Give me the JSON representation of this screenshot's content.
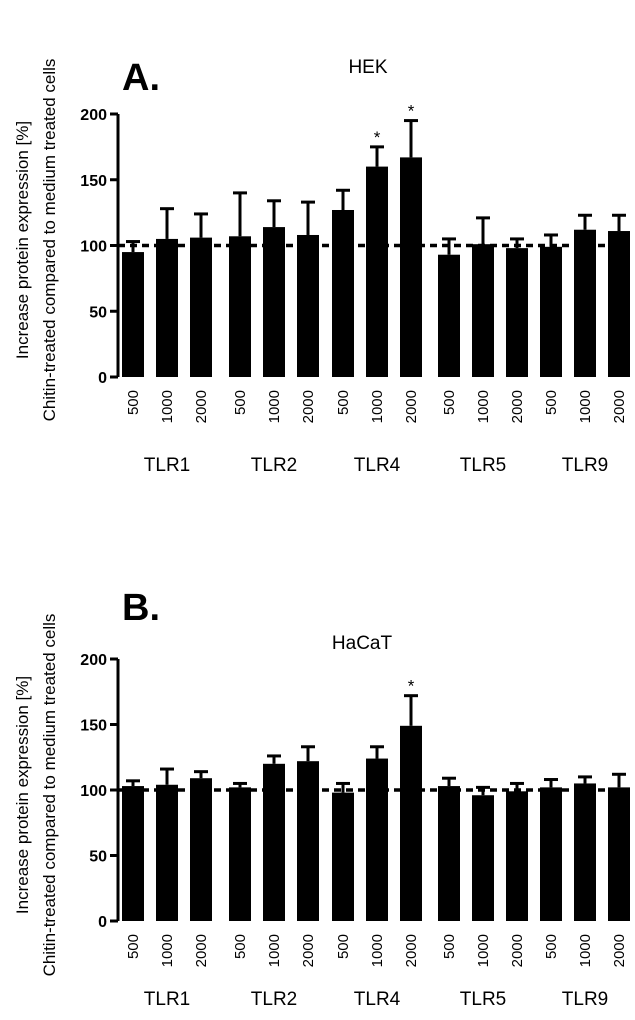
{
  "chart_data": [
    {
      "type": "bar",
      "panel_letter": "A.",
      "title": "HEK",
      "ylabel_line1": "Increase protein expression [%]",
      "ylabel_line2": "Chitin-treated compared to medium treated cells",
      "ylim": [
        0,
        200
      ],
      "yticks": [
        "0",
        "50",
        "100",
        "150",
        "200"
      ],
      "reference_line": 100,
      "concentrations": [
        "500",
        "1000",
        "2000"
      ],
      "groups": [
        {
          "name": "TLR1",
          "values": [
            95,
            105,
            106
          ],
          "errors": [
            8,
            23,
            18
          ],
          "significant": [
            false,
            false,
            false
          ]
        },
        {
          "name": "TLR2",
          "values": [
            107,
            114,
            108
          ],
          "errors": [
            33,
            20,
            25
          ],
          "significant": [
            false,
            false,
            false
          ]
        },
        {
          "name": "TLR4",
          "values": [
            127,
            160,
            167
          ],
          "errors": [
            15,
            15,
            28
          ],
          "significant": [
            false,
            true,
            true
          ]
        },
        {
          "name": "TLR5",
          "values": [
            93,
            101,
            98
          ],
          "errors": [
            12,
            20,
            7
          ],
          "significant": [
            false,
            false,
            false
          ]
        },
        {
          "name": "TLR9",
          "values": [
            99,
            112,
            111
          ],
          "errors": [
            9,
            11,
            12
          ],
          "significant": [
            false,
            false,
            false
          ]
        }
      ],
      "significance_marker": "*"
    },
    {
      "type": "bar",
      "panel_letter": "B.",
      "title": "HaCaT",
      "ylabel_line1": "Increase protein expression [%]",
      "ylabel_line2": "Chitin-treated compared to medium treated cells",
      "ylim": [
        0,
        200
      ],
      "yticks": [
        "0",
        "50",
        "100",
        "150",
        "200"
      ],
      "reference_line": 100,
      "concentrations": [
        "500",
        "1000",
        "2000"
      ],
      "groups": [
        {
          "name": "TLR1",
          "values": [
            103,
            104,
            109
          ],
          "errors": [
            4,
            12,
            5
          ],
          "significant": [
            false,
            false,
            false
          ]
        },
        {
          "name": "TLR2",
          "values": [
            102,
            120,
            122
          ],
          "errors": [
            3,
            6,
            11
          ],
          "significant": [
            false,
            false,
            false
          ]
        },
        {
          "name": "TLR4",
          "values": [
            98,
            124,
            149
          ],
          "errors": [
            7,
            9,
            23
          ],
          "significant": [
            false,
            false,
            true
          ]
        },
        {
          "name": "TLR5",
          "values": [
            103,
            96,
            99
          ],
          "errors": [
            6,
            6,
            6
          ],
          "significant": [
            false,
            false,
            false
          ]
        },
        {
          "name": "TLR9",
          "values": [
            102,
            105,
            102
          ],
          "errors": [
            6,
            5,
            10
          ],
          "significant": [
            false,
            false,
            false
          ]
        }
      ],
      "significance_marker": "*"
    }
  ]
}
